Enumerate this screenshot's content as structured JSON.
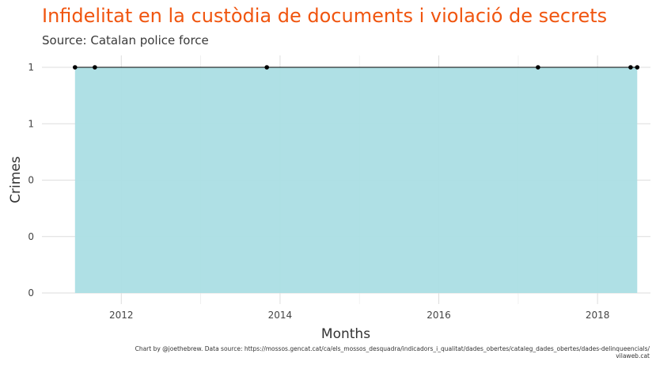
{
  "chart_data": {
    "type": "area",
    "title": "Infidelitat en la custòdia de documents i violació de secrets",
    "subtitle": "Source: Catalan police force",
    "xlabel": "Months",
    "ylabel": "Crimes",
    "x": [
      "2011-06",
      "2011-09",
      "2013-11",
      "2017-04",
      "2018-06",
      "2018-07"
    ],
    "values": [
      1,
      1,
      1,
      1,
      1,
      1
    ],
    "xlim": [
      "2011-01",
      "2018-09"
    ],
    "ylim": [
      0,
      1
    ],
    "x_ticks": [
      "2012",
      "2014",
      "2016",
      "2018"
    ],
    "y_tick_values": [
      0,
      0.25,
      0.5,
      0.75,
      1
    ],
    "y_tick_labels": [
      "0",
      "0",
      "0",
      "1",
      "1"
    ],
    "grid": true,
    "fill_color": "#abdee4",
    "line_color": "#000000",
    "caption_line1": "Chart by @joethebrew. Data source: https://mossos.gencat.cat/ca/els_mossos_desquadra/indicadors_i_qualitat/dades_obertes/cataleg_dades_obertes/dades-delinqueencials/",
    "caption_line2": "vilaweb.cat"
  }
}
